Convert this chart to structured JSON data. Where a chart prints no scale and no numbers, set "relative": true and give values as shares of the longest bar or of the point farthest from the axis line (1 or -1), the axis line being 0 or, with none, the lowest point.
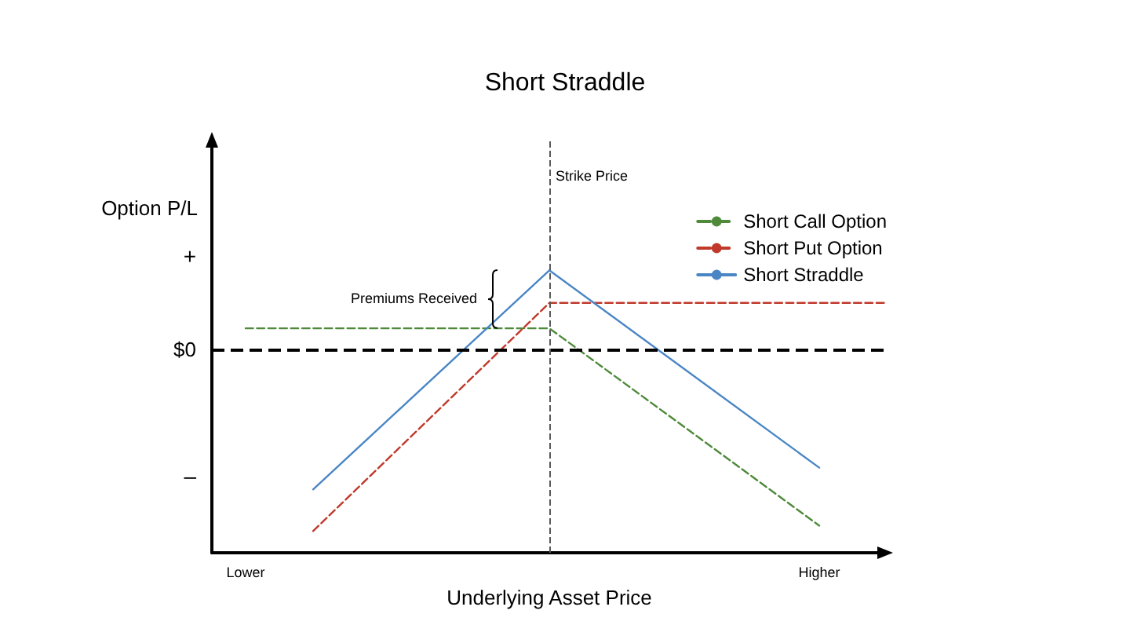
{
  "chart_data": {
    "type": "line",
    "title": "Short Straddle",
    "xlabel": "Underlying Asset Price",
    "ylabel": "Option P/L",
    "relative": true,
    "categories": [
      null,
      "Lower",
      null,
      null,
      null,
      null,
      null,
      null,
      null,
      null,
      null,
      null,
      null,
      null,
      null,
      null,
      null,
      null,
      "Higher",
      null,
      null
    ],
    "series": [
      {
        "name": "Short Call Option",
        "color": "#4e8a3a",
        "line_style": "dashed",
        "values": [
          null,
          0.12,
          null,
          null,
          null,
          null,
          null,
          null,
          null,
          null,
          0.12,
          null,
          null,
          null,
          null,
          null,
          null,
          null,
          -0.97,
          null,
          null
        ]
      },
      {
        "name": "Short Put Option",
        "color": "#c0392b",
        "line_style": "dashed",
        "values": [
          null,
          null,
          null,
          -1,
          null,
          null,
          null,
          null,
          null,
          null,
          0.26,
          null,
          null,
          null,
          null,
          null,
          null,
          null,
          null,
          null,
          0.26
        ]
      },
      {
        "name": "Short Straddle",
        "color": "#4a86c5",
        "line_style": "solid",
        "values": [
          null,
          null,
          null,
          -0.77,
          null,
          null,
          null,
          null,
          null,
          null,
          0.44,
          null,
          null,
          null,
          null,
          null,
          null,
          null,
          -0.65,
          null,
          null
        ]
      }
    ],
    "ref_lines": [
      {
        "axis": "y",
        "value": 0,
        "label": "$0",
        "color": "#000000",
        "line_style": "dashed"
      }
    ],
    "annotations": [
      "Strike Price",
      "Premiums Received",
      "+",
      "–"
    ],
    "legend": "top right"
  }
}
